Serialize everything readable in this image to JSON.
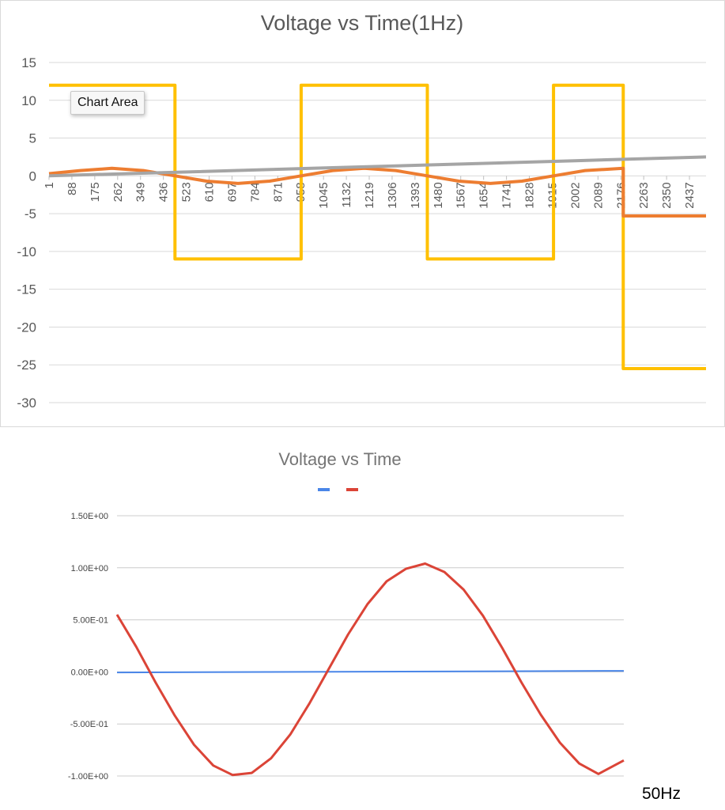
{
  "chart_data": [
    {
      "type": "line",
      "title": "Voltage vs Time(1Hz)",
      "xlabel": "",
      "ylabel": "",
      "x_tick_labels": [
        "1",
        "88",
        "175",
        "262",
        "349",
        "436",
        "523",
        "610",
        "697",
        "784",
        "871",
        "958",
        "1045",
        "1132",
        "1219",
        "1306",
        "1393",
        "1480",
        "1567",
        "1654",
        "1741",
        "1828",
        "1915",
        "2002",
        "2089",
        "2176",
        "2263",
        "2350",
        "2437"
      ],
      "x_range": [
        1,
        2500
      ],
      "ylim": [
        -30,
        15
      ],
      "y_ticks": [
        15,
        10,
        5,
        0,
        -5,
        -10,
        -15,
        -20,
        -25,
        -30
      ],
      "grid": true,
      "legend": "none",
      "series": [
        {
          "color": "#ffc000",
          "x": [
            1,
            480,
            480,
            960,
            960,
            1440,
            1440,
            1920,
            1920,
            2185,
            2185,
            2500
          ],
          "values": [
            12,
            12,
            -11,
            -11,
            12,
            12,
            -11,
            -11,
            12,
            12,
            -25.5,
            -25.5
          ]
        },
        {
          "color": "#ed7d31",
          "x": [
            1,
            120,
            240,
            360,
            480,
            600,
            720,
            840,
            960,
            1080,
            1200,
            1320,
            1440,
            1560,
            1680,
            1800,
            1920,
            2040,
            2185,
            2185,
            2500
          ],
          "values": [
            0.3,
            0.7,
            1.0,
            0.7,
            0.0,
            -0.7,
            -1.0,
            -0.7,
            0.0,
            0.7,
            1.0,
            0.7,
            0.0,
            -0.7,
            -1.0,
            -0.7,
            0.0,
            0.7,
            1.0,
            -5.3,
            -5.3
          ]
        },
        {
          "color": "#a5a5a5",
          "x": [
            1,
            500,
            1000,
            1500,
            2000,
            2500
          ],
          "values": [
            0.0,
            0.5,
            1.0,
            1.5,
            2.0,
            2.5
          ]
        }
      ],
      "tooltip": "Chart Area"
    },
    {
      "type": "line",
      "title": "Voltage vs Time",
      "xlabel": "",
      "ylabel": "",
      "x_range": [
        0,
        1
      ],
      "ylim": [
        -1.0,
        1.5
      ],
      "y_tick_values": [
        1.5,
        1.0,
        0.5,
        0.0,
        -0.5,
        -1.0
      ],
      "y_tick_labels": [
        "1.50E+00",
        "1.00E+00",
        "5.00E-01",
        "0.00E+00",
        "-5.00E-01",
        "-1.00E+00"
      ],
      "grid": true,
      "legend": "top-center",
      "series": [
        {
          "color": "#4a86e8",
          "x": [
            0,
            1
          ],
          "values": [
            -0.005,
            0.01
          ]
        },
        {
          "color": "#db4437",
          "x": [
            0.0,
            0.038,
            0.076,
            0.114,
            0.152,
            0.19,
            0.228,
            0.266,
            0.304,
            0.342,
            0.38,
            0.418,
            0.456,
            0.494,
            0.532,
            0.57,
            0.608,
            0.646,
            0.684,
            0.722,
            0.76,
            0.798,
            0.836,
            0.874,
            0.912,
            0.95,
            1.0
          ],
          "values": [
            0.55,
            0.24,
            -0.1,
            -0.42,
            -0.7,
            -0.9,
            -0.99,
            -0.97,
            -0.83,
            -0.6,
            -0.3,
            0.03,
            0.36,
            0.65,
            0.87,
            0.99,
            1.04,
            0.96,
            0.79,
            0.54,
            0.23,
            -0.1,
            -0.41,
            -0.68,
            -0.88,
            -0.98,
            -0.85
          ]
        }
      ]
    }
  ],
  "note": "50Hz"
}
